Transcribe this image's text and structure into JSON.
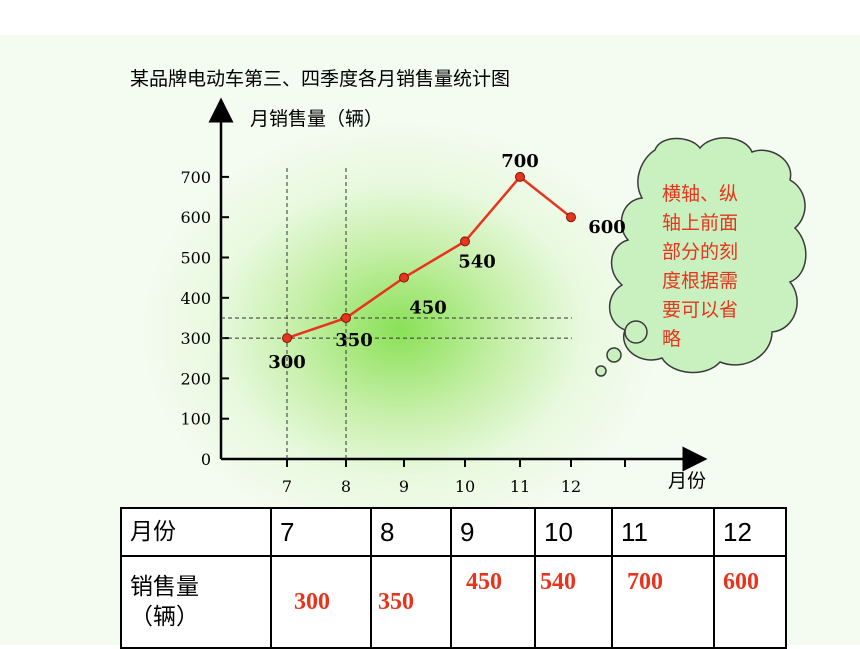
{
  "slide": {
    "title": "某品牌电动车第三、四季度各月销售量统计图",
    "callout": {
      "lines": [
        "横轴、纵",
        "轴上前面",
        "部分的刻",
        "度根据需",
        "要可以省",
        "略"
      ]
    }
  },
  "chart_data": {
    "type": "line",
    "title": "某品牌电动车第三、四季度各月销售量统计图",
    "ylabel": "月销售量（辆）",
    "xlabel": "月份",
    "y_ticks": [
      "0",
      "100",
      "200",
      "300",
      "400",
      "500",
      "600",
      "700"
    ],
    "x_ticks": [
      "7",
      "8",
      "9",
      "10",
      "11",
      "12"
    ],
    "x": [
      7,
      8,
      9,
      10,
      11,
      12
    ],
    "values": [
      300,
      350,
      450,
      540,
      700,
      600
    ],
    "data_labels": [
      "300",
      "350",
      "450",
      "540",
      "700",
      "600"
    ],
    "ylim": [
      0,
      700
    ],
    "reference_lines": {
      "x": [
        7,
        8
      ],
      "y": [
        300,
        350
      ]
    },
    "line_color": "#e8341c",
    "marker_color": "#e8341c"
  },
  "table": {
    "header_label": "月份",
    "months": [
      "7",
      "8",
      "9",
      "10",
      "11",
      "12"
    ],
    "row_label_line1": "销售量",
    "row_label_line2": "（辆）",
    "values": [
      "300",
      "350",
      "450",
      "540",
      "700",
      "600"
    ]
  }
}
